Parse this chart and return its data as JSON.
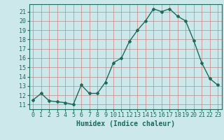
{
  "x": [
    0,
    1,
    2,
    3,
    4,
    5,
    6,
    7,
    8,
    9,
    10,
    11,
    12,
    13,
    14,
    15,
    16,
    17,
    18,
    19,
    20,
    21,
    22,
    23
  ],
  "y": [
    11.5,
    12.2,
    11.4,
    11.3,
    11.2,
    11.0,
    13.1,
    12.2,
    12.2,
    13.4,
    15.5,
    16.0,
    17.8,
    19.0,
    20.0,
    21.3,
    21.0,
    21.3,
    20.5,
    20.0,
    17.9,
    15.5,
    13.8,
    13.1
  ],
  "xlabel": "Humidex (Indice chaleur)",
  "xlim": [
    -0.5,
    23.5
  ],
  "ylim": [
    10.5,
    21.8
  ],
  "yticks": [
    11,
    12,
    13,
    14,
    15,
    16,
    17,
    18,
    19,
    20,
    21
  ],
  "xticks": [
    0,
    1,
    2,
    3,
    4,
    5,
    6,
    7,
    8,
    9,
    10,
    11,
    12,
    13,
    14,
    15,
    16,
    17,
    18,
    19,
    20,
    21,
    22,
    23
  ],
  "line_color": "#1a6b5a",
  "marker_color": "#1a6b5a",
  "bg_color": "#cce8eb",
  "grid_color_v": "#d08080",
  "grid_color_h": "#c08888",
  "text_color": "#1a6b5a",
  "xlabel_fontsize": 7,
  "tick_fontsize": 6
}
